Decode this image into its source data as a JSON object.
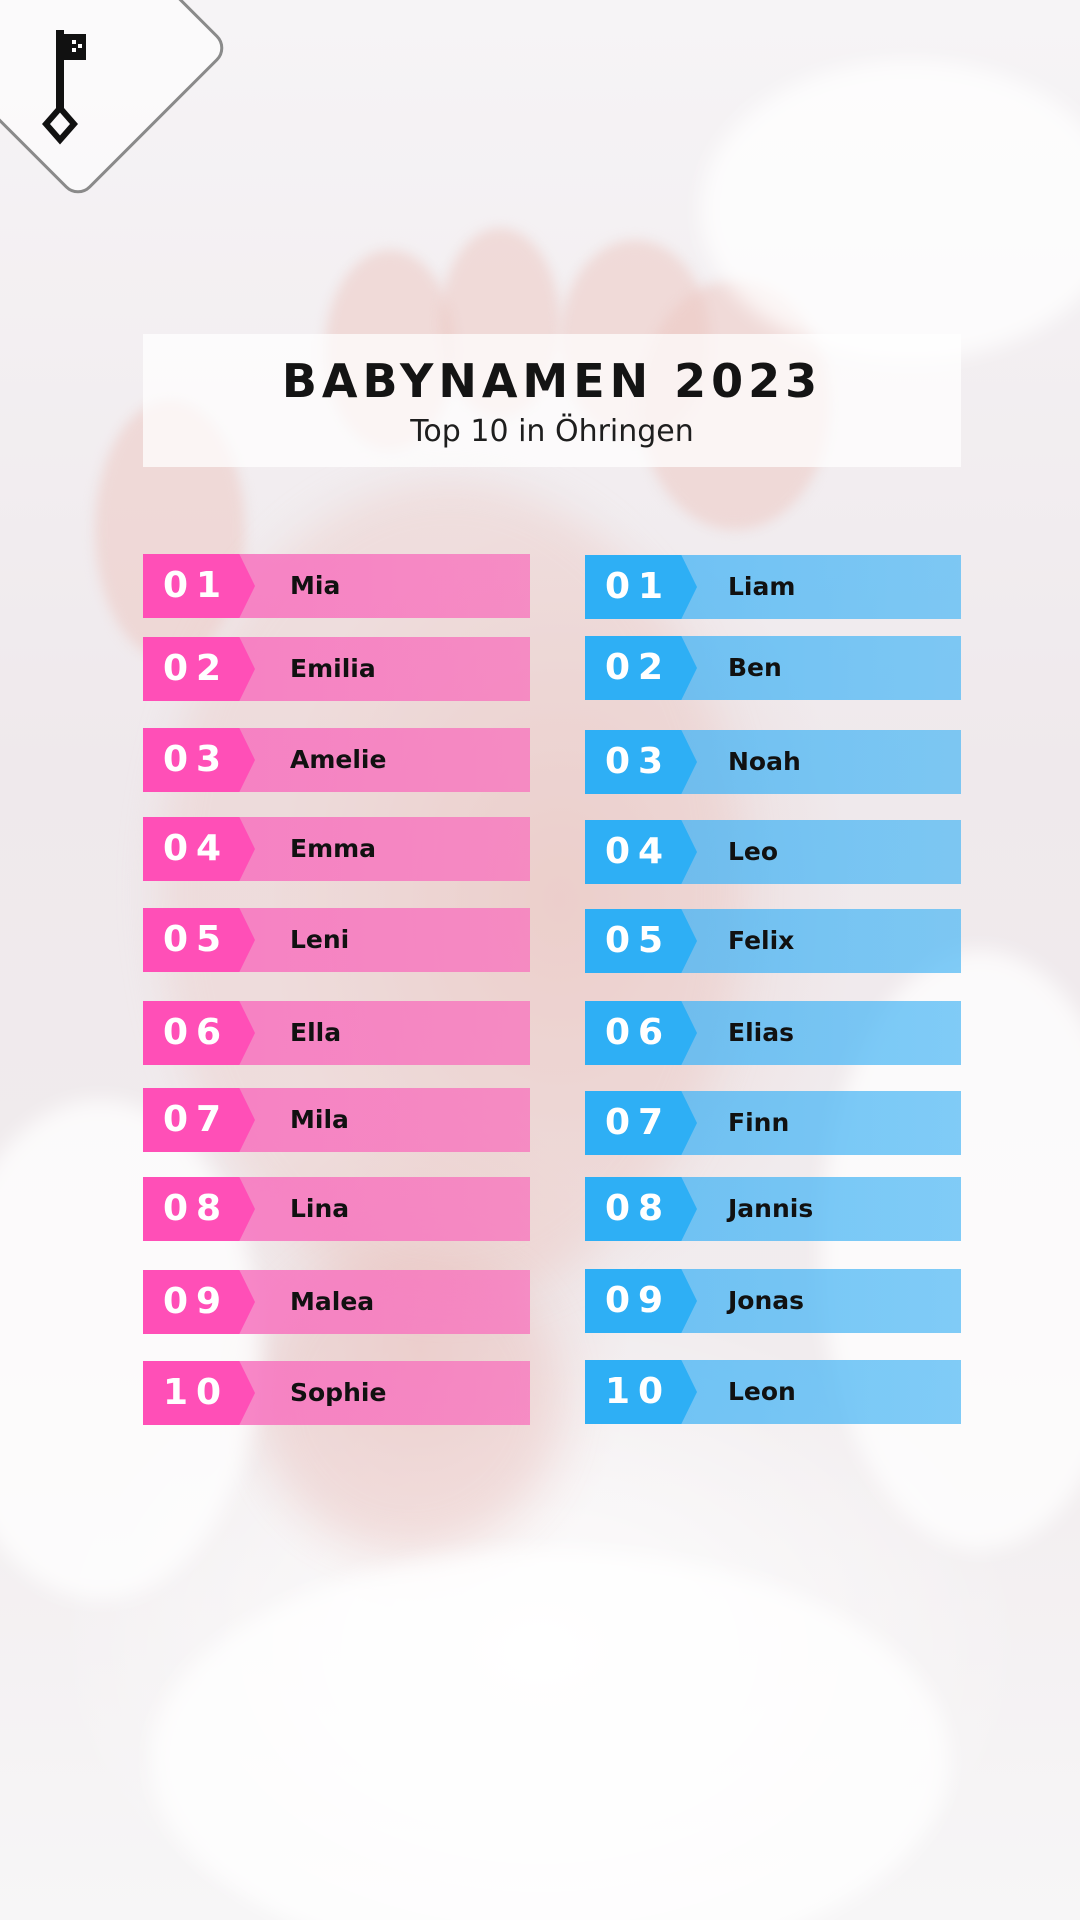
{
  "header": {
    "title": "BABYNAMEN 2023",
    "subtitle": "Top 10 in Öhringen"
  },
  "colors": {
    "girls_badge": "#ff4fb7",
    "girls_bar": "#f77ebe",
    "boys_badge": "#2eaff5",
    "boys_bar": "#50b9f5",
    "logo_icon": "#111111"
  },
  "logo": {
    "icon": "key-icon"
  },
  "girls": [
    {
      "rank": "01",
      "name": "Mia"
    },
    {
      "rank": "02",
      "name": "Emilia"
    },
    {
      "rank": "03",
      "name": "Amelie"
    },
    {
      "rank": "04",
      "name": "Emma"
    },
    {
      "rank": "05",
      "name": "Leni"
    },
    {
      "rank": "06",
      "name": "Ella"
    },
    {
      "rank": "07",
      "name": "Mila"
    },
    {
      "rank": "08",
      "name": "Lina"
    },
    {
      "rank": "09",
      "name": "Malea"
    },
    {
      "rank": "10",
      "name": "Sophie"
    }
  ],
  "boys": [
    {
      "rank": "01",
      "name": "Liam"
    },
    {
      "rank": "02",
      "name": "Ben"
    },
    {
      "rank": "03",
      "name": "Noah"
    },
    {
      "rank": "04",
      "name": "Leo"
    },
    {
      "rank": "05",
      "name": "Felix"
    },
    {
      "rank": "06",
      "name": "Elias"
    },
    {
      "rank": "07",
      "name": "Finn"
    },
    {
      "rank": "08",
      "name": "Jannis"
    },
    {
      "rank": "09",
      "name": "Jonas"
    },
    {
      "rank": "10",
      "name": "Leon"
    }
  ]
}
